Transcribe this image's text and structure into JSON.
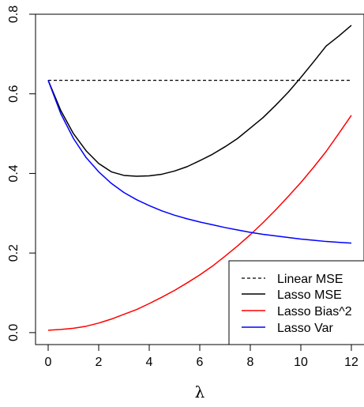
{
  "chart_data": {
    "type": "line",
    "title": "",
    "xlabel": "λ",
    "ylabel": "",
    "xlim": [
      -0.5,
      12.5
    ],
    "ylim": [
      -0.03,
      0.8
    ],
    "x_ticks": [
      "0",
      "2",
      "4",
      "6",
      "8",
      "10",
      "12"
    ],
    "y_ticks": [
      "0.0",
      "0.2",
      "0.4",
      "0.6",
      "0.8"
    ],
    "grid": false,
    "legend_position": "bottom-right",
    "legend": [
      {
        "label": "Linear MSE",
        "color": "#000000",
        "dash": "dashed"
      },
      {
        "label": "Lasso MSE",
        "color": "#000000",
        "dash": "solid"
      },
      {
        "label": "Lasso Bias^2",
        "color": "#ff0000",
        "dash": "solid"
      },
      {
        "label": "Lasso Var",
        "color": "#0000ff",
        "dash": "solid"
      }
    ],
    "x": [
      0,
      0.5,
      1,
      1.5,
      2,
      2.5,
      3,
      3.5,
      4,
      4.5,
      5,
      5.5,
      6,
      6.5,
      7,
      7.5,
      8,
      8.5,
      9,
      9.5,
      10,
      10.5,
      11,
      11.5,
      12
    ],
    "series": [
      {
        "name": "Linear MSE",
        "color": "#000000",
        "dash": "dashed",
        "values": [
          0.634,
          0.634,
          0.634,
          0.634,
          0.634,
          0.634,
          0.634,
          0.634,
          0.634,
          0.634,
          0.634,
          0.634,
          0.634,
          0.634,
          0.634,
          0.634,
          0.634,
          0.634,
          0.634,
          0.634,
          0.634,
          0.634,
          0.634,
          0.634,
          0.634
        ]
      },
      {
        "name": "Lasso MSE",
        "color": "#000000",
        "dash": "solid",
        "values": [
          0.634,
          0.558,
          0.5,
          0.457,
          0.425,
          0.404,
          0.395,
          0.393,
          0.394,
          0.398,
          0.406,
          0.417,
          0.432,
          0.448,
          0.467,
          0.488,
          0.514,
          0.54,
          0.571,
          0.604,
          0.641,
          0.68,
          0.72,
          0.745,
          0.772
        ]
      },
      {
        "name": "Lasso Bias^2",
        "color": "#ff0000",
        "dash": "solid",
        "values": [
          0.006,
          0.008,
          0.011,
          0.016,
          0.024,
          0.034,
          0.046,
          0.058,
          0.073,
          0.089,
          0.106,
          0.125,
          0.145,
          0.167,
          0.192,
          0.218,
          0.246,
          0.276,
          0.308,
          0.342,
          0.377,
          0.415,
          0.455,
          0.5,
          0.546
        ]
      },
      {
        "name": "Lasso Var",
        "color": "#0000ff",
        "dash": "solid",
        "values": [
          0.634,
          0.55,
          0.488,
          0.44,
          0.404,
          0.375,
          0.352,
          0.334,
          0.319,
          0.306,
          0.295,
          0.286,
          0.278,
          0.271,
          0.264,
          0.258,
          0.252,
          0.247,
          0.243,
          0.239,
          0.235,
          0.232,
          0.229,
          0.227,
          0.225
        ]
      }
    ]
  }
}
